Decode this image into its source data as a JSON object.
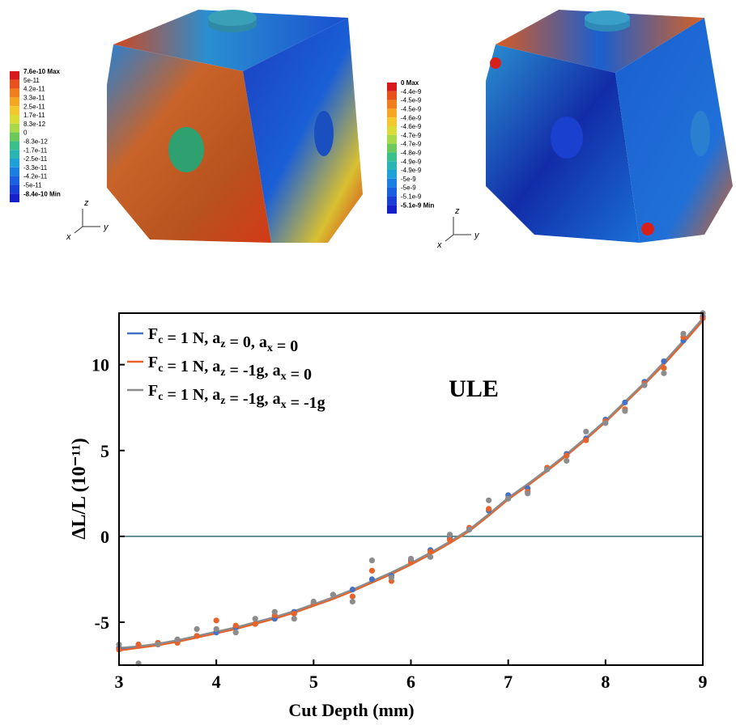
{
  "chart_data": {
    "type": "scatter-fit",
    "xlabel": "Cut Depth (mm)",
    "ylabel": "ΔL/L (10⁻¹¹)",
    "annotation": "ULE",
    "x": [
      3.0,
      3.2,
      3.4,
      3.6,
      3.8,
      4.0,
      4.2,
      4.4,
      4.6,
      4.8,
      5.0,
      5.2,
      5.4,
      5.6,
      5.8,
      6.0,
      6.2,
      6.4,
      6.6,
      6.8,
      7.0,
      7.2,
      7.4,
      7.6,
      7.8,
      8.0,
      8.2,
      8.4,
      8.6,
      8.8,
      9.0
    ],
    "series": [
      {
        "name": "Fc = 1 N, az = 0, ax = 0",
        "color": "#4472c4",
        "values": [
          -6.5,
          -6.3,
          -6.2,
          -6.1,
          -5.8,
          -5.6,
          -5.3,
          -5.1,
          -4.8,
          -4.4,
          -3.9,
          -3.4,
          -3.1,
          -2.5,
          -2.3,
          -1.4,
          -0.8,
          -0.1,
          0.4,
          1.5,
          2.4,
          2.8,
          3.9,
          4.8,
          5.7,
          6.8,
          7.8,
          9.0,
          10.2,
          11.4,
          12.8
        ],
        "fit": [
          -6.6,
          -6.45,
          -6.3,
          -6.1,
          -5.85,
          -5.6,
          -5.35,
          -5.05,
          -4.75,
          -4.4,
          -4.0,
          -3.6,
          -3.15,
          -2.65,
          -2.15,
          -1.6,
          -1.0,
          -0.35,
          0.35,
          1.25,
          2.2,
          3.0,
          3.85,
          4.75,
          5.7,
          6.7,
          7.8,
          8.9,
          10.1,
          11.3,
          12.6
        ]
      },
      {
        "name": "Fc = 1 N, az = -1g, ax = 0",
        "color": "#e8632a",
        "values": [
          -6.6,
          -6.3,
          -6.2,
          -6.2,
          -5.8,
          -4.9,
          -5.2,
          -5.1,
          -4.6,
          -4.5,
          -3.9,
          -3.4,
          -3.5,
          -2.0,
          -2.6,
          -1.5,
          -0.9,
          -0.2,
          0.5,
          1.6,
          2.2,
          2.6,
          4.0,
          4.7,
          5.6,
          6.7,
          7.4,
          8.9,
          9.8,
          11.6,
          12.7
        ],
        "fit": [
          -6.65,
          -6.5,
          -6.35,
          -6.15,
          -5.9,
          -5.65,
          -5.4,
          -5.1,
          -4.8,
          -4.45,
          -4.05,
          -3.65,
          -3.2,
          -2.7,
          -2.2,
          -1.65,
          -1.05,
          -0.4,
          0.3,
          1.2,
          2.15,
          2.95,
          3.8,
          4.7,
          5.65,
          6.65,
          7.75,
          8.85,
          10.0,
          11.25,
          12.55
        ]
      },
      {
        "name": "Fc = 1 N, az = -1g, ax = -1g",
        "color": "#8c8c8c",
        "values": [
          -6.3,
          -7.4,
          -6.3,
          -6.0,
          -5.4,
          -5.4,
          -5.6,
          -4.8,
          -4.4,
          -4.8,
          -3.8,
          -3.4,
          -3.8,
          -1.4,
          -2.4,
          -1.3,
          -1.2,
          0.1,
          0.4,
          2.1,
          2.2,
          2.5,
          3.9,
          4.4,
          6.1,
          6.6,
          7.3,
          8.8,
          9.5,
          11.8,
          13.0
        ],
        "fit": [
          -6.5,
          -6.4,
          -6.25,
          -6.05,
          -5.8,
          -5.55,
          -5.3,
          -5.0,
          -4.7,
          -4.35,
          -3.95,
          -3.55,
          -3.1,
          -2.6,
          -2.1,
          -1.55,
          -0.95,
          -0.3,
          0.4,
          1.3,
          2.25,
          3.05,
          3.9,
          4.8,
          5.75,
          6.75,
          7.85,
          8.95,
          10.15,
          11.4,
          12.7
        ]
      }
    ],
    "xlim": [
      3,
      9
    ],
    "ylim": [
      -7.5,
      13
    ],
    "xticks": [
      3,
      4,
      5,
      6,
      7,
      8,
      9
    ],
    "yticks": [
      -5,
      0,
      5,
      10
    ],
    "reference_line": {
      "value": 0,
      "color": "#2f6f73"
    },
    "legend": "upper left"
  },
  "colorbars": [
    {
      "labels": [
        "7.6e-10 Max",
        "5e-11",
        "4.2e-11",
        "3.3e-11",
        "2.5e-11",
        "1.7e-11",
        "8.3e-12",
        "0",
        "-8.3e-12",
        "-1.7e-11",
        "-2.5e-11",
        "-3.3e-11",
        "-4.2e-11",
        "-5e-11",
        "-8.4e-10 Min"
      ]
    },
    {
      "labels": [
        "0 Max",
        "-4.4e-9",
        "-4.5e-9",
        "-4.5e-9",
        "-4.6e-9",
        "-4.6e-9",
        "-4.7e-9",
        "-4.7e-9",
        "-4.8e-9",
        "-4.9e-9",
        "-4.9e-9",
        "-5e-9",
        "-5e-9",
        "-5.1e-9",
        "-5.1e-9 Min"
      ]
    }
  ],
  "colorbar_colors": [
    "#d7191c",
    "#e8501c",
    "#f07e1e",
    "#f5a623",
    "#f2c82e",
    "#d9dc36",
    "#a8d94a",
    "#6cc85a",
    "#3cc08a",
    "#2ab5b5",
    "#1fa0d6",
    "#1a7fe0",
    "#1a5fe0",
    "#1a3fd6",
    "#1620c8"
  ],
  "triads": [
    {
      "z": "z",
      "x": "x",
      "y": "y"
    },
    {
      "z": "z",
      "x": "x",
      "y": "y"
    }
  ]
}
